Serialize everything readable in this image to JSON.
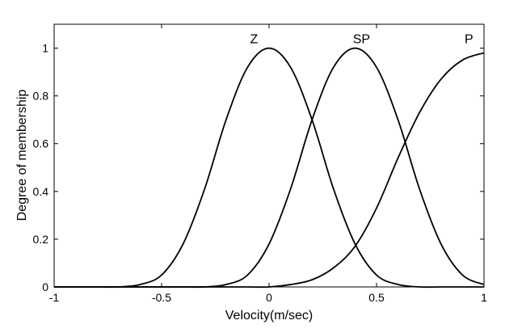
{
  "chart_data": {
    "type": "line",
    "title": "",
    "xlabel": "Velocity(m/sec)",
    "ylabel": "Degree of membership",
    "xlim": [
      -1,
      1
    ],
    "ylim": [
      0,
      1.1
    ],
    "grid": false,
    "x_ticks": [
      -1,
      -0.5,
      0,
      0.5,
      1
    ],
    "x_tick_labels": [
      "-1",
      "-0.5",
      "0",
      "0.5",
      "1"
    ],
    "y_ticks": [
      0,
      0.2,
      0.4,
      0.6,
      0.8,
      1
    ],
    "y_tick_labels": [
      "0",
      "0.2",
      "0.4",
      "0.6",
      "0.8",
      "1"
    ],
    "series": [
      {
        "name": "Z",
        "label_at": [
          -0.07,
          1.02
        ],
        "x": [
          -1,
          -0.9,
          -0.8,
          -0.7,
          -0.6,
          -0.5,
          -0.4,
          -0.3,
          -0.2,
          -0.1,
          0,
          0.1,
          0.2,
          0.3,
          0.4,
          0.5,
          0.6,
          0.7,
          0.8,
          0.9,
          1
        ],
        "values": [
          0.0,
          0.0,
          0.0,
          0.0,
          0.01,
          0.05,
          0.18,
          0.41,
          0.7,
          0.92,
          1.0,
          0.92,
          0.7,
          0.41,
          0.18,
          0.05,
          0.01,
          0.0,
          0.0,
          0.0,
          0.0
        ]
      },
      {
        "name": "SP",
        "label_at": [
          0.43,
          1.02
        ],
        "x": [
          -1,
          -0.9,
          -0.8,
          -0.7,
          -0.6,
          -0.5,
          -0.4,
          -0.3,
          -0.2,
          -0.1,
          0,
          0.1,
          0.2,
          0.3,
          0.4,
          0.5,
          0.6,
          0.7,
          0.8,
          0.9,
          1
        ],
        "values": [
          0.0,
          0.0,
          0.0,
          0.0,
          0.0,
          0.0,
          0.0,
          0.0,
          0.01,
          0.05,
          0.18,
          0.41,
          0.7,
          0.92,
          1.0,
          0.92,
          0.7,
          0.41,
          0.18,
          0.05,
          0.01
        ]
      },
      {
        "name": "P",
        "label_at": [
          0.93,
          1.02
        ],
        "x": [
          -1,
          -0.9,
          -0.8,
          -0.7,
          -0.6,
          -0.5,
          -0.4,
          -0.3,
          -0.2,
          -0.1,
          0,
          0.1,
          0.2,
          0.3,
          0.4,
          0.5,
          0.6,
          0.7,
          0.8,
          0.9,
          1
        ],
        "values": [
          0.0,
          0.0,
          0.0,
          0.0,
          0.0,
          0.0,
          0.0,
          0.0,
          0.0,
          0.0,
          0.0,
          0.01,
          0.03,
          0.08,
          0.17,
          0.33,
          0.54,
          0.73,
          0.87,
          0.95,
          0.98
        ]
      }
    ],
    "line_color": "#000000",
    "background_color": "#ffffff"
  }
}
